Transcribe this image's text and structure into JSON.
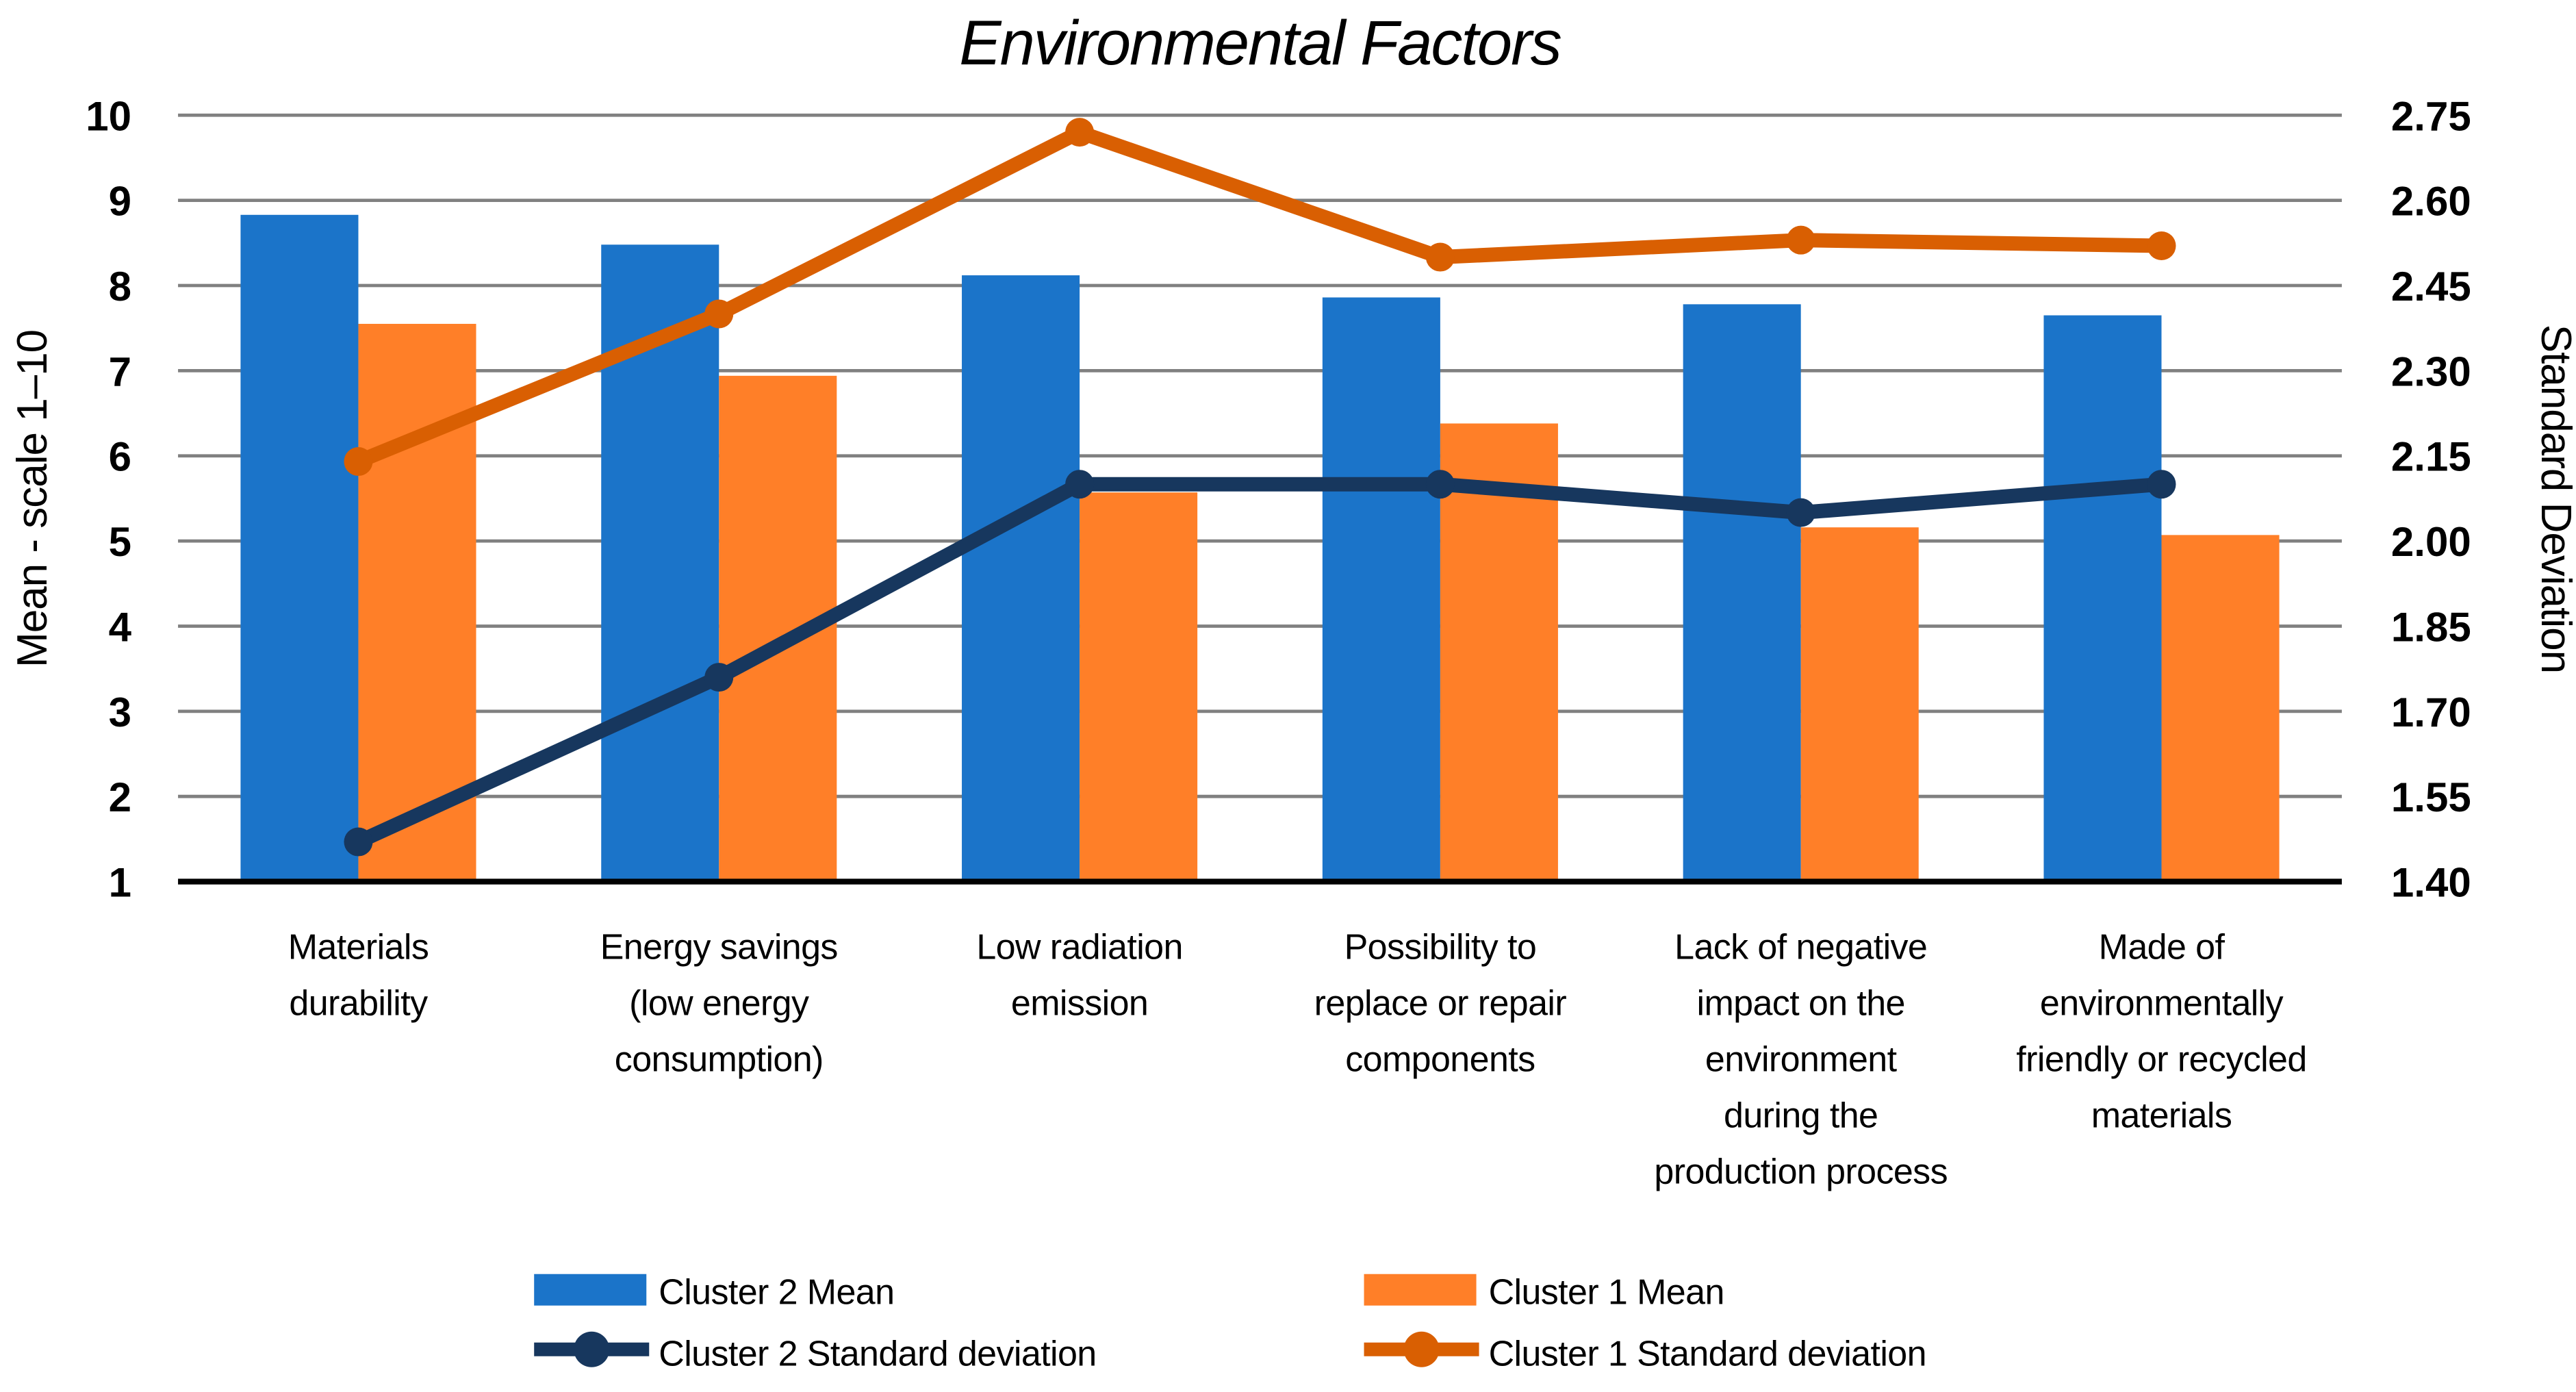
{
  "title": "Environmental Factors",
  "chart_data": {
    "type": "bar",
    "subtype": "combo-bar-line-dual-axis",
    "title": "Environmental Factors",
    "categories": [
      "Materials durability",
      "Energy savings (low energy consumption)",
      "Low radiation emission",
      "Possibility to replace or repair components",
      "Lack of negative impact on the environment during the production process",
      "Made of environmentally friendly or recycled materials"
    ],
    "category_label_lines": [
      [
        "Materials",
        "durability"
      ],
      [
        "Energy savings",
        "(low energy",
        "consumption)"
      ],
      [
        "Low radiation",
        "emission"
      ],
      [
        "Possibility to",
        "replace or repair",
        "components"
      ],
      [
        "Lack of negative",
        "impact on the",
        "environment",
        "during the",
        "production process"
      ],
      [
        "Made of",
        "environmentally",
        "friendly or recycled",
        "materials"
      ]
    ],
    "left_axis": {
      "title": "Mean - scale 1–10",
      "min": 1,
      "max": 10,
      "ticks": [
        10,
        9,
        8,
        7,
        6,
        5,
        4,
        3,
        2,
        1
      ]
    },
    "right_axis": {
      "title": "Standard Deviation",
      "min": 1.4,
      "max": 2.75,
      "ticks": [
        "2.75",
        "2.60",
        "2.45",
        "2.30",
        "2.15",
        "2.00",
        "1.85",
        "1.70",
        "1.55",
        "1.40"
      ]
    },
    "series": [
      {
        "name": "Cluster 2 Mean",
        "type": "bar",
        "axis": "left",
        "color": "#1B74C9",
        "values": [
          8.83,
          8.48,
          8.12,
          7.86,
          7.78,
          7.65
        ]
      },
      {
        "name": "Cluster 1 Mean",
        "type": "bar",
        "axis": "left",
        "color": "#FF7F28",
        "values": [
          7.55,
          6.94,
          5.57,
          6.38,
          5.16,
          5.07
        ]
      },
      {
        "name": "Cluster 2 Standard deviation",
        "type": "line",
        "axis": "right",
        "color": "#17375E",
        "values": [
          1.47,
          1.76,
          2.1,
          2.1,
          2.05,
          2.1
        ]
      },
      {
        "name": "Cluster 1 Standard deviation",
        "type": "line",
        "axis": "right",
        "color": "#D95F02",
        "values": [
          2.14,
          2.4,
          2.72,
          2.5,
          2.53,
          2.52
        ]
      }
    ],
    "legend_position": "bottom",
    "grid": true,
    "gridline_color": "#808080",
    "axis_line_color": "#000000",
    "background_color": "#FFFFFF"
  }
}
